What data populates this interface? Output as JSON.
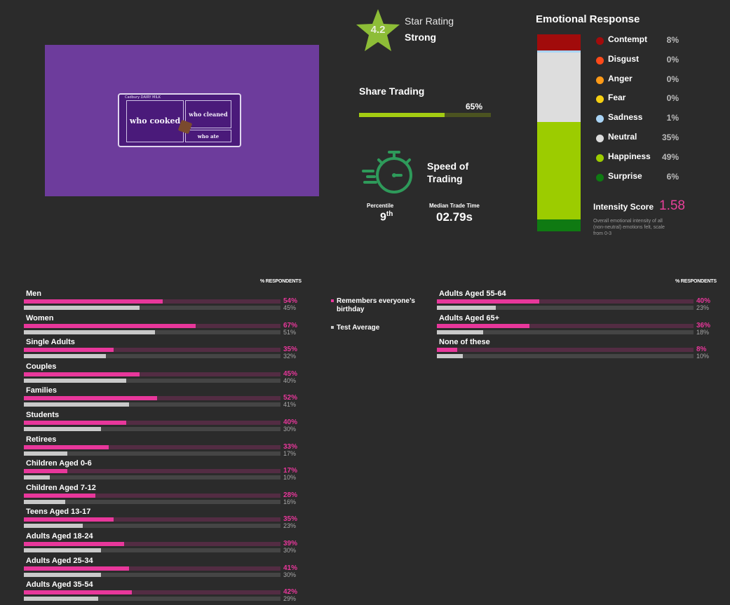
{
  "ad_thumbnail": {
    "brand": "Cadbury DAIRY MILK",
    "panel_1": "who cooked",
    "panel_2": "who cleaned",
    "panel_3": "who ate"
  },
  "star_rating": {
    "value": "4.2",
    "title": "Star Rating",
    "rating": "Strong",
    "color": "#8dbd37"
  },
  "share_trading": {
    "title": "Share Trading",
    "value_label": "65%",
    "value": 65,
    "fill_color": "#a3cc12"
  },
  "speed_of_trading": {
    "title": "Speed of Trading",
    "icon": "stopwatch-icon",
    "percentile_label": "Percentile",
    "percentile_value": "9",
    "percentile_suffix": "th",
    "median_label": "Median Trade Time",
    "median_value": "02.79s"
  },
  "emotional_response": {
    "title": "Emotional Response",
    "emotions": [
      {
        "name": "Contempt",
        "value_label": "8%",
        "value": 8,
        "color": "#a10b0b"
      },
      {
        "name": "Disgust",
        "value_label": "0%",
        "value": 0,
        "color": "#ff4a1a"
      },
      {
        "name": "Anger",
        "value_label": "0%",
        "value": 0,
        "color": "#ff9a17"
      },
      {
        "name": "Fear",
        "value_label": "0%",
        "value": 0,
        "color": "#f6d012"
      },
      {
        "name": "Sadness",
        "value_label": "1%",
        "value": 1,
        "color": "#a9d4f5"
      },
      {
        "name": "Neutral",
        "value_label": "35%",
        "value": 35,
        "color": "#dddddd"
      },
      {
        "name": "Happiness",
        "value_label": "49%",
        "value": 49,
        "color": "#9ccc00"
      },
      {
        "name": "Surprise",
        "value_label": "6%",
        "value": 6,
        "color": "#0f7a12"
      }
    ],
    "intensity_label": "Intensity Score",
    "intensity_value": "1.58",
    "intensity_note": "Overall emotional intensity of all (non-neutral) emotions felt, scale from 0-3"
  },
  "demographics": {
    "respondents_label": "% RESPONDENTS",
    "legend": {
      "primary": "Remembers everyone’s birthday",
      "secondary": "Test Average",
      "primary_color": "#e8379b",
      "secondary_color": "#c9c9c9"
    },
    "left": [
      {
        "name": "Men",
        "value": 54,
        "value_label": "54%",
        "avg": 45,
        "avg_label": "45%"
      },
      {
        "name": "Women",
        "value": 67,
        "value_label": "67%",
        "avg": 51,
        "avg_label": "51%"
      },
      {
        "name": "Single Adults",
        "value": 35,
        "value_label": "35%",
        "avg": 32,
        "avg_label": "32%"
      },
      {
        "name": "Couples",
        "value": 45,
        "value_label": "45%",
        "avg": 40,
        "avg_label": "40%"
      },
      {
        "name": "Families",
        "value": 52,
        "value_label": "52%",
        "avg": 41,
        "avg_label": "41%"
      },
      {
        "name": "Students",
        "value": 40,
        "value_label": "40%",
        "avg": 30,
        "avg_label": "30%"
      },
      {
        "name": "Retirees",
        "value": 33,
        "value_label": "33%",
        "avg": 17,
        "avg_label": "17%"
      },
      {
        "name": "Children Aged 0-6",
        "value": 17,
        "value_label": "17%",
        "avg": 10,
        "avg_label": "10%"
      },
      {
        "name": "Children Aged 7-12",
        "value": 28,
        "value_label": "28%",
        "avg": 16,
        "avg_label": "16%"
      },
      {
        "name": "Teens Aged 13-17",
        "value": 35,
        "value_label": "35%",
        "avg": 23,
        "avg_label": "23%"
      },
      {
        "name": "Adults Aged 18-24",
        "value": 39,
        "value_label": "39%",
        "avg": 30,
        "avg_label": "30%"
      },
      {
        "name": "Adults Aged 25-34",
        "value": 41,
        "value_label": "41%",
        "avg": 30,
        "avg_label": "30%"
      },
      {
        "name": "Adults Aged 35-54",
        "value": 42,
        "value_label": "42%",
        "avg": 29,
        "avg_label": "29%"
      }
    ],
    "right": [
      {
        "name": "Adults Aged 55-64",
        "value": 40,
        "value_label": "40%",
        "avg": 23,
        "avg_label": "23%"
      },
      {
        "name": "Adults Aged 65+",
        "value": 36,
        "value_label": "36%",
        "avg": 18,
        "avg_label": "18%"
      },
      {
        "name": "None of these",
        "value": 8,
        "value_label": "8%",
        "avg": 10,
        "avg_label": "10%"
      }
    ]
  }
}
